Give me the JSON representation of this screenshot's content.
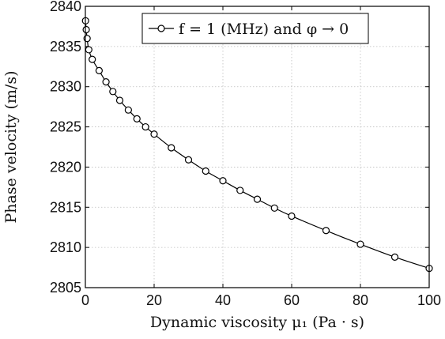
{
  "chart_data": {
    "type": "line",
    "title": "",
    "xlabel": "Dynamic viscosity μ₁ (Pa · s)",
    "ylabel": "Phase velocity (m/s)",
    "xlim": [
      0,
      100
    ],
    "ylim": [
      2805,
      2840
    ],
    "x_ticks": [
      0,
      20,
      40,
      60,
      80,
      100
    ],
    "y_ticks": [
      2805,
      2810,
      2815,
      2820,
      2825,
      2830,
      2835,
      2840
    ],
    "grid": true,
    "legend_position": "top-right",
    "marker": "open-circle",
    "series": [
      {
        "name": "f = 1 (MHz) and φ → 0",
        "color": "#000000",
        "x": [
          0.05,
          0.25,
          0.5,
          1,
          2,
          4,
          6,
          8,
          10,
          12.5,
          15,
          17.5,
          20,
          25,
          30,
          35,
          40,
          45,
          50,
          55,
          60,
          70,
          80,
          90,
          100
        ],
        "y": [
          2838.2,
          2837.1,
          2836.0,
          2834.6,
          2833.4,
          2832.0,
          2830.6,
          2829.4,
          2828.3,
          2827.1,
          2826.0,
          2825.0,
          2824.1,
          2822.4,
          2820.9,
          2819.5,
          2818.3,
          2817.1,
          2816.0,
          2814.9,
          2813.9,
          2812.1,
          2810.4,
          2808.8,
          2807.4
        ]
      }
    ]
  }
}
